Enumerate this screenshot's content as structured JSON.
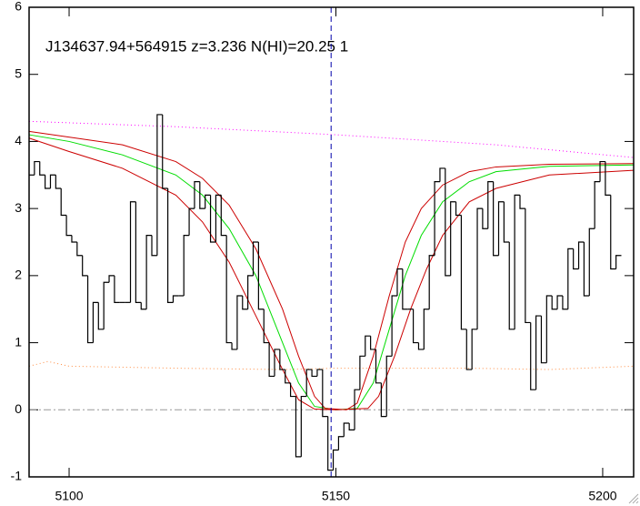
{
  "chart_data": {
    "type": "histogram",
    "title": "J134637.94+564915 z=3.236 N(HI)=20.25 1",
    "bins": [
      5092.5,
      5093.5,
      5094.5,
      5095.5,
      5096.5,
      5097.5,
      5098.5,
      5099.5,
      5100.5,
      5101.5,
      5102.5,
      5103.5,
      5104.5,
      5105.5,
      5106.5,
      5107.5,
      5108.5,
      5109.5,
      5110.5,
      5111.5,
      5112.5,
      5113.5,
      5114.5,
      5115.5,
      5116.5,
      5117.5,
      5118.5,
      5119.5,
      5120.5,
      5121.5,
      5122.5,
      5123.5,
      5124.5,
      5125.5,
      5126.5,
      5127.5,
      5128.5,
      5129.5,
      5130.5,
      5131.5,
      5132.5,
      5133.5,
      5134.5,
      5135.5,
      5136.5,
      5137.5,
      5138.5,
      5139.5,
      5140.5,
      5141.5,
      5142.5,
      5143.5,
      5144.5,
      5145.5,
      5146.5,
      5147.5,
      5148.5,
      5149.5,
      5150.5,
      5151.5,
      5152.5,
      5153.5,
      5154.5,
      5155.5,
      5156.5,
      5157.5,
      5158.5,
      5159.5,
      5160.5,
      5161.5,
      5162.5,
      5163.5,
      5164.5,
      5165.5,
      5166.5,
      5167.5,
      5168.5,
      5169.5,
      5170.5,
      5171.5,
      5172.5,
      5173.5,
      5174.5,
      5175.5,
      5176.5,
      5177.5,
      5178.5,
      5179.5,
      5180.5,
      5181.5,
      5182.5,
      5183.5,
      5184.5,
      5185.5,
      5186.5,
      5187.5,
      5188.5,
      5189.5,
      5190.5,
      5191.5,
      5192.5,
      5193.5,
      5194.5,
      5195.5,
      5196.5,
      5197.5,
      5198.5,
      5199.5,
      5200.5,
      5201.5,
      5202.5,
      5203.5
    ],
    "values": [
      3.5,
      3.7,
      3.5,
      3.3,
      3.5,
      3.3,
      2.9,
      2.6,
      2.5,
      2.3,
      2.0,
      1.0,
      1.6,
      1.2,
      1.9,
      2.0,
      1.6,
      1.6,
      1.6,
      3.1,
      1.6,
      1.5,
      2.6,
      2.3,
      4.4,
      3.3,
      1.6,
      1.7,
      1.7,
      2.6,
      3.0,
      3.4,
      3.0,
      3.2,
      2.5,
      3.2,
      2.6,
      1.0,
      0.9,
      1.7,
      1.5,
      2.0,
      2.5,
      1.5,
      1.0,
      0.5,
      0.9,
      0.6,
      0.4,
      0.2,
      -0.7,
      0.2,
      0.6,
      0.5,
      0.6,
      -0.1,
      -0.9,
      -0.6,
      -0.4,
      -0.2,
      -0.3,
      0.3,
      0.8,
      1.1,
      0.9,
      0.4,
      -0.1,
      0.8,
      1.7,
      2.1,
      1.5,
      1.5,
      1.0,
      0.9,
      1.5,
      2.3,
      3.4,
      3.6,
      2.0,
      3.1,
      2.9,
      1.2,
      0.6,
      1.2,
      3.0,
      2.7,
      3.4,
      2.3,
      3.1,
      2.5,
      1.2,
      3.2,
      3.0,
      1.3,
      0.3,
      1.4,
      0.7,
      1.7,
      1.5,
      1.7,
      1.5,
      2.4,
      2.1,
      2.5,
      1.7,
      2.7,
      3.4,
      3.7,
      3.2,
      2.1,
      2.3
    ],
    "color": "#000000",
    "lines": [
      {
        "color": "#ff00ff",
        "dash": "dotted",
        "x": [
          5092.5,
          5120,
          5150,
          5180,
          5205.8
        ],
        "values": [
          4.3,
          4.22,
          4.1,
          3.95,
          3.76
        ]
      },
      {
        "color": "#ff8c40",
        "dash": "dotted",
        "x": [
          5092.5,
          5096,
          5100,
          5120,
          5140,
          5150,
          5175,
          5190,
          5205.8
        ],
        "values": [
          0.65,
          0.72,
          0.65,
          0.62,
          0.6,
          0.62,
          0.62,
          0.6,
          0.65
        ]
      },
      {
        "color": "#999999",
        "dash": "dashdot",
        "x": [
          5092.5,
          5205.8
        ],
        "values": [
          0,
          0
        ]
      },
      {
        "color": "#00dd00",
        "dash": "solid",
        "x": [
          5092.5,
          5100,
          5110,
          5120,
          5125,
          5130,
          5135,
          5140,
          5143,
          5146,
          5150,
          5154,
          5157,
          5160,
          5163,
          5166,
          5170,
          5175,
          5180,
          5190,
          5205.8
        ],
        "values": [
          4.1,
          4.0,
          3.8,
          3.5,
          3.2,
          2.7,
          2.0,
          1.0,
          0.4,
          0.05,
          0,
          0.02,
          0.4,
          1.2,
          2.0,
          2.6,
          3.1,
          3.4,
          3.55,
          3.63,
          3.65
        ]
      },
      {
        "color": "#cc0000",
        "dash": "solid",
        "x": [
          5092.5,
          5110,
          5120,
          5125,
          5130,
          5135,
          5140,
          5143,
          5146,
          5148,
          5152,
          5154,
          5157,
          5160,
          5163,
          5166,
          5170,
          5175,
          5180,
          5190,
          5205.8
        ],
        "values": [
          4.15,
          3.95,
          3.7,
          3.45,
          3.05,
          2.4,
          1.5,
          0.8,
          0.2,
          0.02,
          0,
          0.1,
          0.8,
          1.7,
          2.5,
          3.0,
          3.35,
          3.55,
          3.62,
          3.66,
          3.67
        ]
      },
      {
        "color": "#cc0000",
        "dash": "solid",
        "x": [
          5092.5,
          5100,
          5110,
          5120,
          5125,
          5130,
          5135,
          5140,
          5143,
          5146,
          5150,
          5156,
          5158,
          5161,
          5164,
          5167,
          5170,
          5175,
          5180,
          5190,
          5205.8
        ],
        "values": [
          4.05,
          3.85,
          3.6,
          3.2,
          2.8,
          2.2,
          1.4,
          0.6,
          0.15,
          0.01,
          0,
          0.02,
          0.2,
          0.8,
          1.5,
          2.1,
          2.6,
          3.1,
          3.3,
          3.5,
          3.57
        ]
      }
    ],
    "vline": {
      "x": 5149.1,
      "color": "#0000aa"
    },
    "xlim": [
      5092.5,
      5205.8
    ],
    "ylim": [
      -1,
      6
    ],
    "xticks": [
      5100,
      5150,
      5200
    ],
    "yticks": [
      -1,
      0,
      1,
      2,
      3,
      4,
      5,
      6
    ]
  }
}
